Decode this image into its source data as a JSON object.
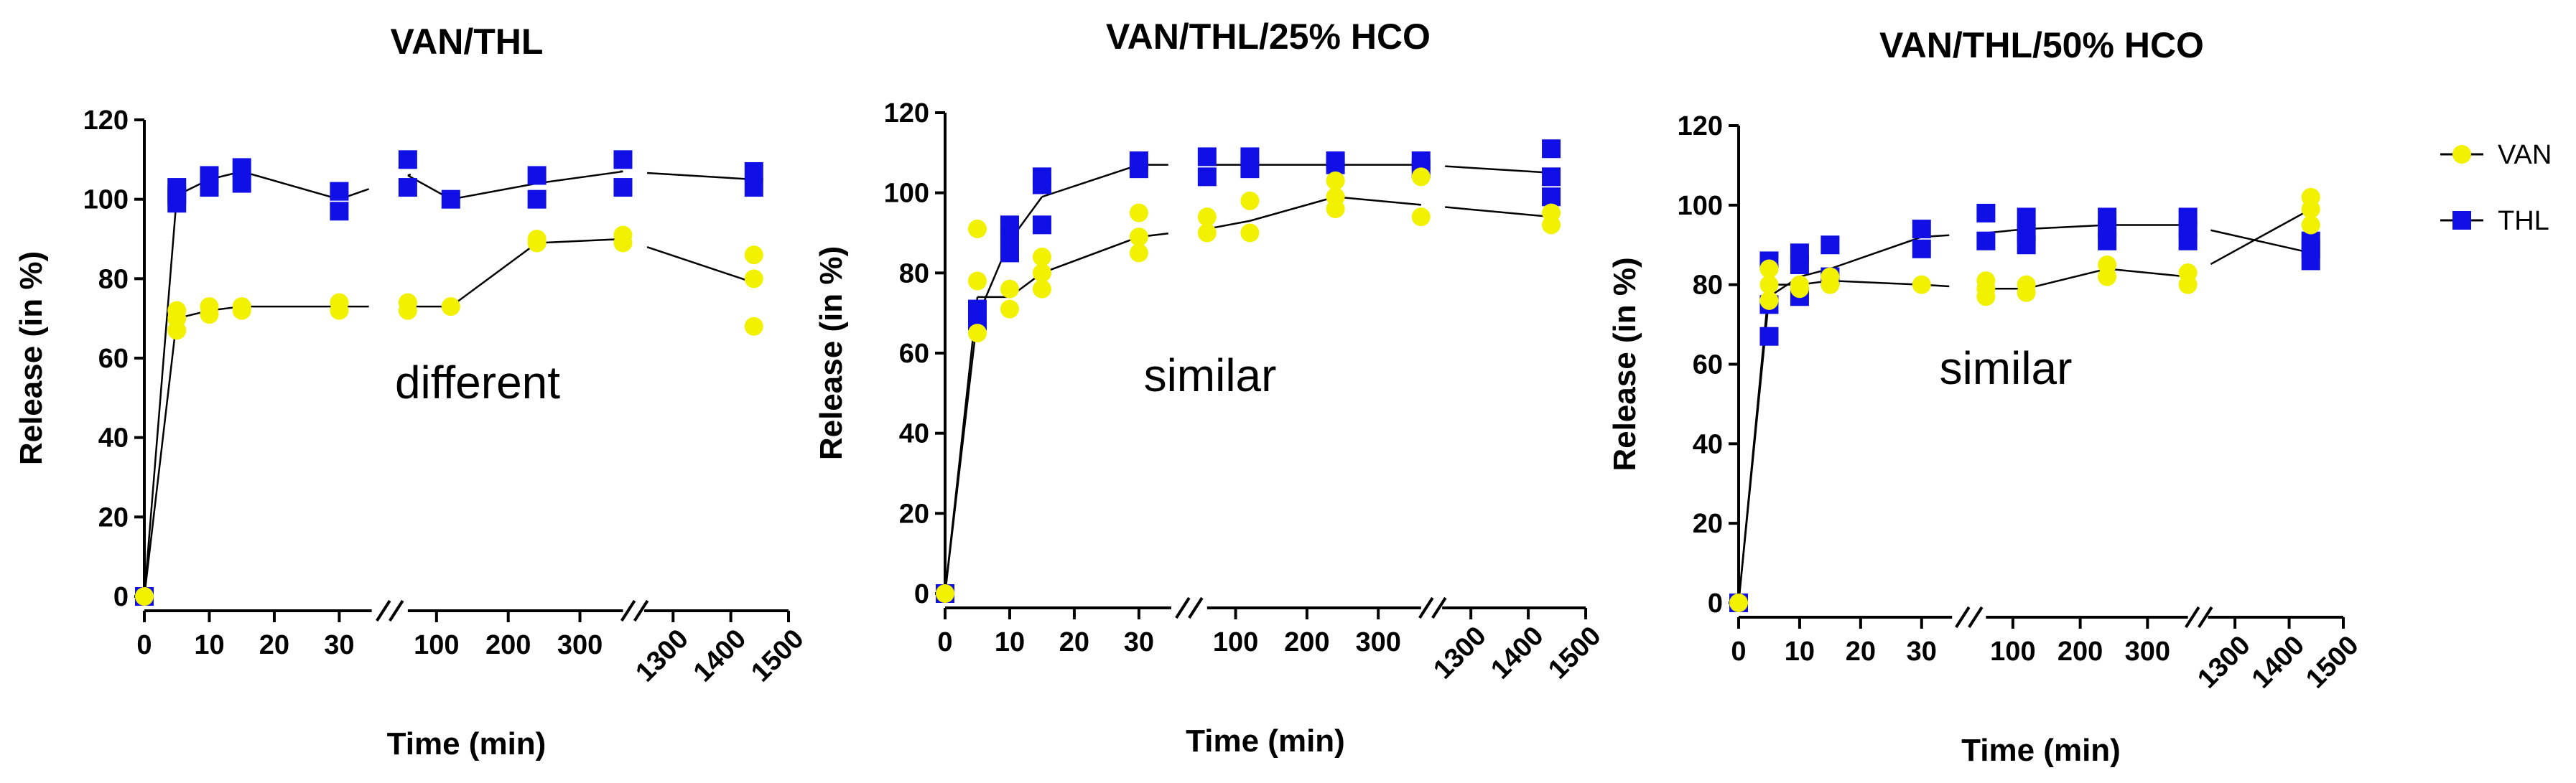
{
  "colors": {
    "VAN": "#f2f200",
    "THL": "#1010e6"
  },
  "legend": [
    {
      "name": "VAN",
      "marker": "circle"
    },
    {
      "name": "THL",
      "marker": "square"
    }
  ],
  "chart_data": [
    {
      "type": "scatter",
      "title": "VAN/THL",
      "xlabel": "Time (min)",
      "ylabel": "Release (in %)",
      "ylim": [
        0,
        120
      ],
      "yticks": [
        0,
        20,
        40,
        60,
        80,
        100,
        120
      ],
      "xticks": [
        "0",
        "10",
        "20",
        "30",
        "100",
        "200",
        "300",
        "1300",
        "1400",
        "1500"
      ],
      "annotation": "different",
      "series": [
        {
          "name": "VAN",
          "x": [
            0,
            5,
            10,
            15,
            30,
            60,
            120,
            240,
            360,
            1440
          ],
          "mean": [
            0,
            70,
            72,
            73,
            73,
            73,
            73,
            89,
            90,
            79
          ],
          "points": [
            [
              0,
              0
            ],
            [
              5,
              67
            ],
            [
              5,
              70
            ],
            [
              5,
              72
            ],
            [
              10,
              71
            ],
            [
              10,
              73
            ],
            [
              15,
              72
            ],
            [
              15,
              73
            ],
            [
              30,
              72
            ],
            [
              30,
              74
            ],
            [
              60,
              72
            ],
            [
              60,
              74
            ],
            [
              120,
              73
            ],
            [
              240,
              89
            ],
            [
              240,
              90
            ],
            [
              360,
              89
            ],
            [
              360,
              91
            ],
            [
              1440,
              68
            ],
            [
              1440,
              80
            ],
            [
              1440,
              86
            ]
          ]
        },
        {
          "name": "THL",
          "x": [
            0,
            5,
            10,
            15,
            30,
            60,
            120,
            240,
            360,
            1440
          ],
          "mean": [
            0,
            101,
            105,
            107,
            100,
            106,
            100,
            104,
            107,
            105
          ],
          "points": [
            [
              0,
              0
            ],
            [
              5,
              99
            ],
            [
              5,
              101
            ],
            [
              5,
              103
            ],
            [
              10,
              103
            ],
            [
              10,
              106
            ],
            [
              15,
              104
            ],
            [
              15,
              108
            ],
            [
              30,
              97
            ],
            [
              30,
              102
            ],
            [
              60,
              103
            ],
            [
              60,
              110
            ],
            [
              120,
              100
            ],
            [
              240,
              100
            ],
            [
              240,
              106
            ],
            [
              360,
              103
            ],
            [
              360,
              110
            ],
            [
              1440,
              103
            ],
            [
              1440,
              107
            ]
          ]
        }
      ]
    },
    {
      "type": "scatter",
      "title": "VAN/THL/25% HCO",
      "xlabel": "Time (min)",
      "ylabel": "Release (in %)",
      "ylim": [
        0,
        120
      ],
      "yticks": [
        0,
        20,
        40,
        60,
        80,
        100,
        120
      ],
      "xticks": [
        "0",
        "10",
        "20",
        "30",
        "100",
        "200",
        "300",
        "1300",
        "1400",
        "1500"
      ],
      "annotation": "similar",
      "series": [
        {
          "name": "VAN",
          "x": [
            0,
            5,
            10,
            15,
            30,
            60,
            120,
            240,
            360,
            1440
          ],
          "mean": [
            0,
            74,
            74,
            80,
            89,
            91,
            93,
            99,
            97,
            94
          ],
          "points": [
            [
              0,
              0
            ],
            [
              5,
              65
            ],
            [
              5,
              78
            ],
            [
              5,
              91
            ],
            [
              10,
              71
            ],
            [
              10,
              76
            ],
            [
              15,
              76
            ],
            [
              15,
              80
            ],
            [
              15,
              84
            ],
            [
              30,
              85
            ],
            [
              30,
              89
            ],
            [
              30,
              95
            ],
            [
              60,
              90
            ],
            [
              60,
              94
            ],
            [
              120,
              90
            ],
            [
              120,
              98
            ],
            [
              240,
              96
            ],
            [
              240,
              99
            ],
            [
              240,
              103
            ],
            [
              360,
              94
            ],
            [
              360,
              104
            ],
            [
              1440,
              92
            ],
            [
              1440,
              95
            ]
          ]
        },
        {
          "name": "THL",
          "x": [
            0,
            5,
            10,
            15,
            30,
            60,
            120,
            240,
            360,
            1440
          ],
          "mean": [
            0,
            69,
            88,
            99,
            107,
            107,
            107,
            107,
            107,
            105
          ],
          "points": [
            [
              0,
              0
            ],
            [
              5,
              68
            ],
            [
              5,
              71
            ],
            [
              10,
              85
            ],
            [
              10,
              89
            ],
            [
              10,
              92
            ],
            [
              15,
              92
            ],
            [
              15,
              102
            ],
            [
              15,
              104
            ],
            [
              30,
              106
            ],
            [
              30,
              108
            ],
            [
              60,
              104
            ],
            [
              60,
              109
            ],
            [
              120,
              106
            ],
            [
              120,
              109
            ],
            [
              240,
              107
            ],
            [
              240,
              108
            ],
            [
              360,
              106
            ],
            [
              360,
              108
            ],
            [
              1440,
              99
            ],
            [
              1440,
              104
            ],
            [
              1440,
              111
            ]
          ]
        }
      ]
    },
    {
      "type": "scatter",
      "title": "VAN/THL/50% HCO",
      "xlabel": "Time (min)",
      "ylabel": "Release (in %)",
      "ylim": [
        0,
        120
      ],
      "yticks": [
        0,
        20,
        40,
        60,
        80,
        100,
        120
      ],
      "xticks": [
        "0",
        "10",
        "20",
        "30",
        "100",
        "200",
        "300",
        "1300",
        "1400",
        "1500"
      ],
      "annotation": "similar",
      "series": [
        {
          "name": "VAN",
          "x": [
            0,
            5,
            10,
            15,
            30,
            60,
            120,
            240,
            360,
            1440
          ],
          "mean": [
            0,
            80,
            80,
            81,
            80,
            79,
            79,
            84,
            82,
            99
          ],
          "points": [
            [
              0,
              0
            ],
            [
              5,
              76
            ],
            [
              5,
              80
            ],
            [
              5,
              84
            ],
            [
              10,
              79
            ],
            [
              10,
              80
            ],
            [
              15,
              80
            ],
            [
              15,
              82
            ],
            [
              30,
              80
            ],
            [
              60,
              77
            ],
            [
              60,
              79
            ],
            [
              60,
              81
            ],
            [
              120,
              78
            ],
            [
              120,
              80
            ],
            [
              240,
              82
            ],
            [
              240,
              85
            ],
            [
              360,
              80
            ],
            [
              360,
              83
            ],
            [
              1440,
              95
            ],
            [
              1440,
              99
            ],
            [
              1440,
              102
            ]
          ]
        },
        {
          "name": "THL",
          "x": [
            0,
            5,
            10,
            15,
            30,
            60,
            120,
            240,
            360,
            1440
          ],
          "mean": [
            0,
            77,
            82,
            84,
            92,
            93,
            94,
            95,
            95,
            88
          ],
          "points": [
            [
              0,
              0
            ],
            [
              5,
              67
            ],
            [
              5,
              75
            ],
            [
              5,
              86
            ],
            [
              10,
              77
            ],
            [
              10,
              85
            ],
            [
              10,
              88
            ],
            [
              15,
              82
            ],
            [
              15,
              90
            ],
            [
              30,
              89
            ],
            [
              30,
              94
            ],
            [
              60,
              91
            ],
            [
              60,
              98
            ],
            [
              120,
              90
            ],
            [
              120,
              93
            ],
            [
              120,
              97
            ],
            [
              240,
              91
            ],
            [
              240,
              94
            ],
            [
              240,
              97
            ],
            [
              360,
              91
            ],
            [
              360,
              94
            ],
            [
              360,
              97
            ],
            [
              1440,
              86
            ],
            [
              1440,
              89
            ],
            [
              1440,
              91
            ]
          ]
        }
      ]
    }
  ]
}
